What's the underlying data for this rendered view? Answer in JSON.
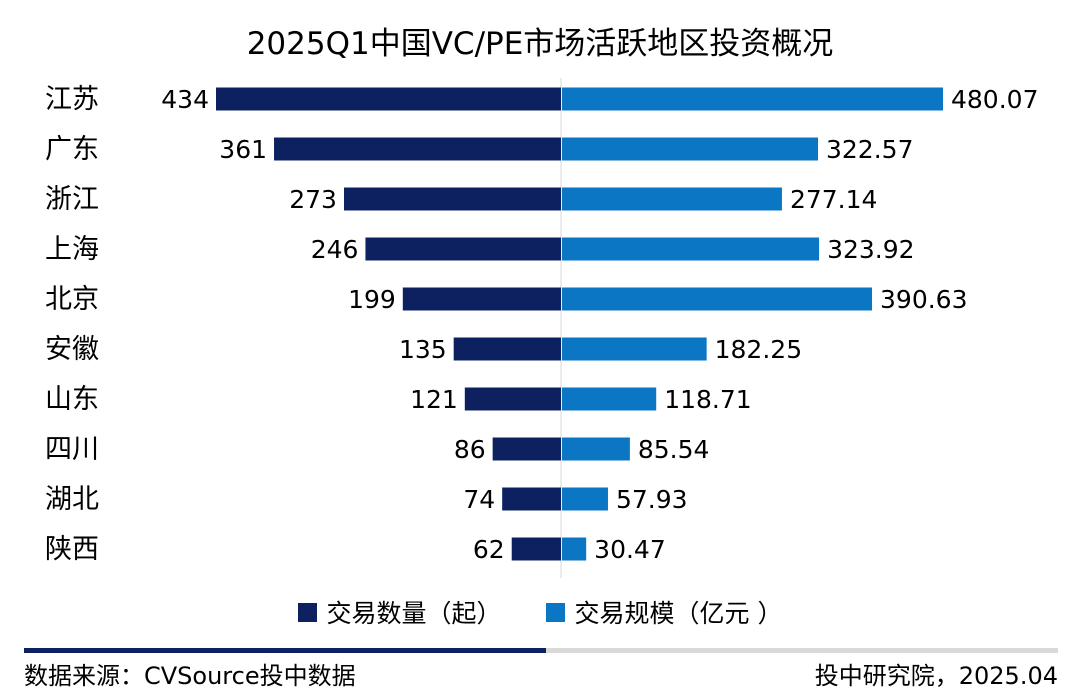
{
  "chart_data": {
    "type": "bar",
    "title": "2025Q1中国VC/PE市场活跃地区投资概况",
    "categories": [
      "江苏",
      "广东",
      "浙江",
      "上海",
      "北京",
      "安徽",
      "山东",
      "四川",
      "湖北",
      "陕西"
    ],
    "series": [
      {
        "name": "交易数量（起）",
        "values": [
          434,
          361,
          273,
          246,
          199,
          135,
          121,
          86,
          74,
          62
        ],
        "labels": [
          "434",
          "361",
          "273",
          "246",
          "199",
          "135",
          "121",
          "86",
          "74",
          "62"
        ],
        "color": "#0d2160"
      },
      {
        "name": "交易规模（亿元 ）",
        "values": [
          480.07,
          322.57,
          277.14,
          323.92,
          390.63,
          182.25,
          118.71,
          85.54,
          57.93,
          30.47
        ],
        "labels": [
          "480.07",
          "322.57",
          "277.14",
          "323.92",
          "390.63",
          "182.25",
          "118.71",
          "85.54",
          "57.93",
          "30.47"
        ],
        "color": "#0a76c4"
      }
    ],
    "xlabel": "",
    "ylabel": "",
    "legend": "bottom"
  },
  "footer": {
    "source": "数据来源：CVSource投中数据",
    "credit": "投中研究院，2025.04"
  },
  "colors": {
    "divider_dark": "#0d2160",
    "divider_light": "#d9d9d9",
    "axis_line": "#d9d9d9"
  }
}
